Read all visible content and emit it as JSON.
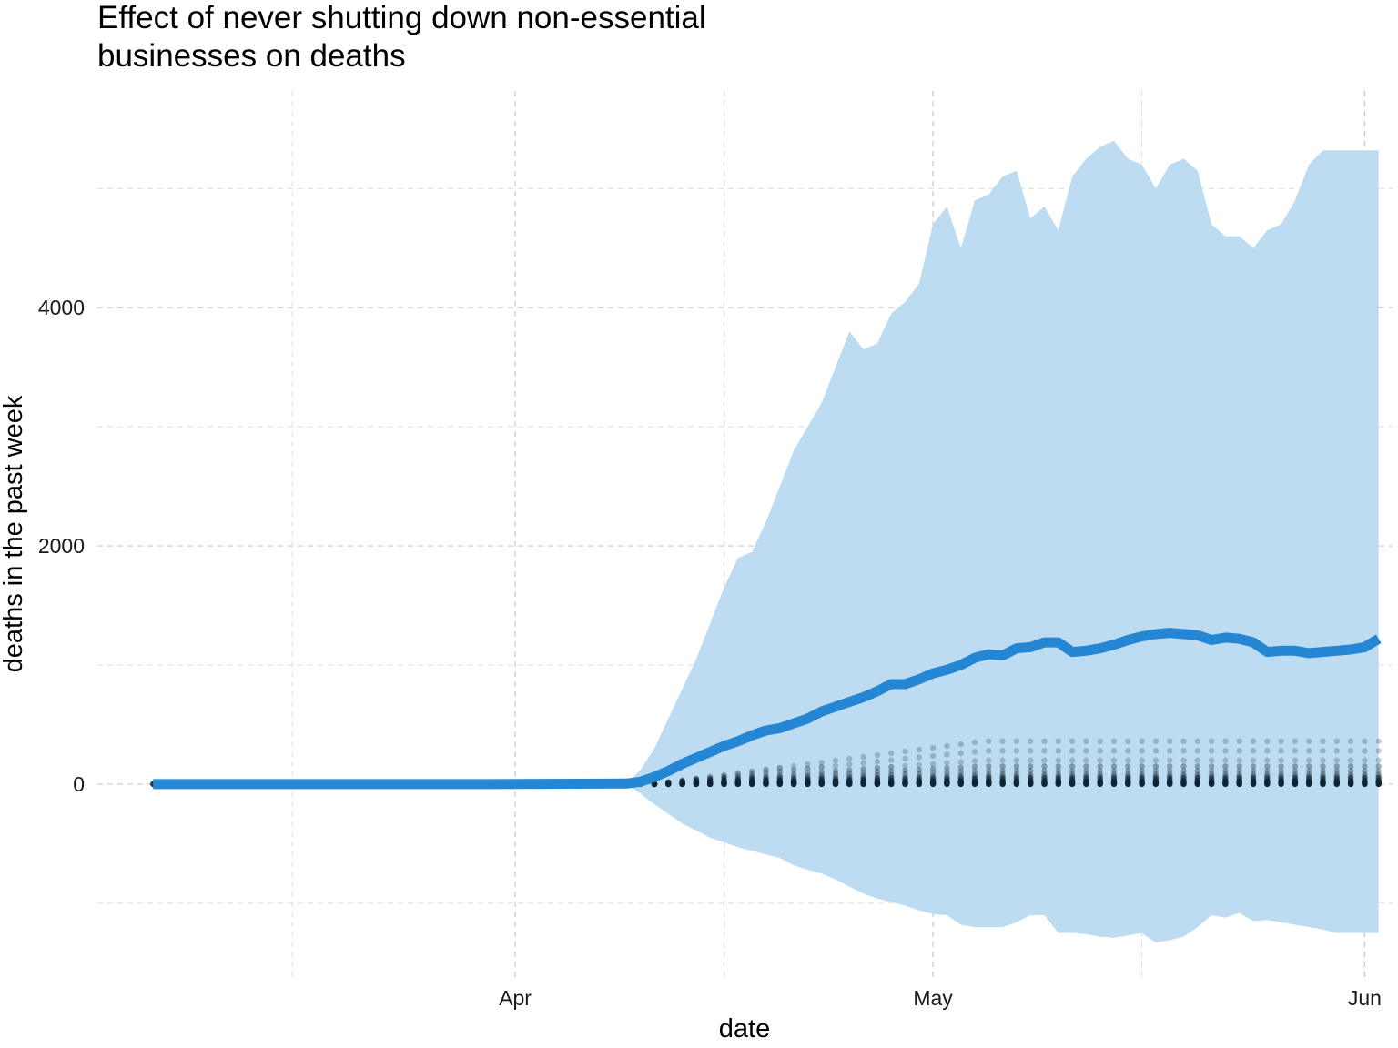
{
  "chart_data": {
    "type": "line",
    "title": "Effect of never shutting down non-essential businesses on deaths",
    "title_lines": [
      "Effect of never shutting down non-essential",
      "businesses on deaths"
    ],
    "xlabel": "date",
    "ylabel": "deaths in the past week",
    "x_ticks": [
      {
        "label": "Apr",
        "date": "2020-04-01"
      },
      {
        "label": "May",
        "date": "2020-05-01"
      },
      {
        "label": "Jun",
        "date": "2020-06-01"
      }
    ],
    "x_minor_ticks": [
      "2020-03-16",
      "2020-04-16",
      "2020-05-16"
    ],
    "y_ticks": [
      0,
      2000,
      4000
    ],
    "y_minor_ticks": [
      -1000,
      1000,
      3000,
      5000
    ],
    "xlim": [
      "2020-03-02",
      "2020-06-03"
    ],
    "ylim": [
      -1650,
      5880
    ],
    "grid": true,
    "legend": "none",
    "colors": {
      "line": "#2586d3",
      "ribbon": "#bddcf1",
      "points": "#0d2233",
      "grid": "#c8c8c8"
    },
    "series": [
      {
        "kind": "mean_line",
        "x": [
          "2020-03-06",
          "2020-03-30",
          "2020-04-09",
          "2020-04-10",
          "2020-04-11",
          "2020-04-12",
          "2020-04-13",
          "2020-04-14",
          "2020-04-15",
          "2020-04-16",
          "2020-04-17",
          "2020-04-18",
          "2020-04-19",
          "2020-04-20",
          "2020-04-21",
          "2020-04-22",
          "2020-04-23",
          "2020-04-24",
          "2020-04-25",
          "2020-04-26",
          "2020-04-27",
          "2020-04-28",
          "2020-04-29",
          "2020-04-30",
          "2020-05-01",
          "2020-05-02",
          "2020-05-03",
          "2020-05-04",
          "2020-05-05",
          "2020-05-06",
          "2020-05-07",
          "2020-05-08",
          "2020-05-09",
          "2020-05-10",
          "2020-05-11",
          "2020-05-12",
          "2020-05-13",
          "2020-05-14",
          "2020-05-15",
          "2020-05-16",
          "2020-05-17",
          "2020-05-18",
          "2020-05-19",
          "2020-05-20",
          "2020-05-21",
          "2020-05-22",
          "2020-05-23",
          "2020-05-24",
          "2020-05-25",
          "2020-05-26",
          "2020-05-27",
          "2020-05-28",
          "2020-05-29",
          "2020-05-30",
          "2020-05-31",
          "2020-06-01",
          "2020-06-02"
        ],
        "y": [
          0,
          0,
          5,
          20,
          60,
          110,
          170,
          220,
          270,
          320,
          360,
          410,
          450,
          470,
          510,
          550,
          610,
          650,
          690,
          730,
          780,
          840,
          840,
          880,
          930,
          960,
          1000,
          1060,
          1090,
          1080,
          1140,
          1150,
          1190,
          1190,
          1110,
          1120,
          1140,
          1170,
          1210,
          1240,
          1260,
          1270,
          1260,
          1250,
          1210,
          1230,
          1220,
          1190,
          1110,
          1120,
          1120,
          1100,
          1110,
          1120,
          1130,
          1150,
          1220
        ]
      },
      {
        "kind": "interval_upper",
        "x": [
          "2020-04-09",
          "2020-04-10",
          "2020-04-11",
          "2020-04-12",
          "2020-04-13",
          "2020-04-14",
          "2020-04-15",
          "2020-04-16",
          "2020-04-17",
          "2020-04-18",
          "2020-04-19",
          "2020-04-20",
          "2020-04-21",
          "2020-04-22",
          "2020-04-23",
          "2020-04-24",
          "2020-04-25",
          "2020-04-26",
          "2020-04-27",
          "2020-04-28",
          "2020-04-29",
          "2020-04-30",
          "2020-05-01",
          "2020-05-02",
          "2020-05-03",
          "2020-05-04",
          "2020-05-05",
          "2020-05-06",
          "2020-05-07",
          "2020-05-08",
          "2020-05-09",
          "2020-05-10",
          "2020-05-11",
          "2020-05-12",
          "2020-05-13",
          "2020-05-14",
          "2020-05-15",
          "2020-05-16",
          "2020-05-17",
          "2020-05-18",
          "2020-05-19",
          "2020-05-20",
          "2020-05-21",
          "2020-05-22",
          "2020-05-23",
          "2020-05-24",
          "2020-05-25",
          "2020-05-26",
          "2020-05-27",
          "2020-05-28",
          "2020-05-29",
          "2020-05-30",
          "2020-05-31",
          "2020-06-01",
          "2020-06-02"
        ],
        "y": [
          0,
          120,
          300,
          550,
          800,
          1050,
          1350,
          1650,
          1900,
          1950,
          2200,
          2500,
          2800,
          3000,
          3200,
          3500,
          3800,
          3650,
          3700,
          3950,
          4050,
          4200,
          4700,
          4850,
          4500,
          4900,
          4950,
          5100,
          5150,
          4750,
          4850,
          4650,
          5100,
          5250,
          5350,
          5400,
          5250,
          5200,
          5000,
          5200,
          5250,
          5150,
          4700,
          4600,
          4600,
          4500,
          4650,
          4700,
          4900,
          5200,
          5320,
          5320,
          5320,
          5320,
          5320
        ]
      },
      {
        "kind": "interval_lower",
        "x": [
          "2020-04-09",
          "2020-04-10",
          "2020-04-11",
          "2020-04-12",
          "2020-04-13",
          "2020-04-14",
          "2020-04-15",
          "2020-04-16",
          "2020-04-17",
          "2020-04-18",
          "2020-04-19",
          "2020-04-20",
          "2020-04-21",
          "2020-04-22",
          "2020-04-23",
          "2020-04-24",
          "2020-04-25",
          "2020-04-26",
          "2020-04-27",
          "2020-04-28",
          "2020-04-29",
          "2020-04-30",
          "2020-05-01",
          "2020-05-02",
          "2020-05-03",
          "2020-05-04",
          "2020-05-05",
          "2020-05-06",
          "2020-05-07",
          "2020-05-08",
          "2020-05-09",
          "2020-05-10",
          "2020-05-11",
          "2020-05-12",
          "2020-05-13",
          "2020-05-14",
          "2020-05-15",
          "2020-05-16",
          "2020-05-17",
          "2020-05-18",
          "2020-05-19",
          "2020-05-20",
          "2020-05-21",
          "2020-05-22",
          "2020-05-23",
          "2020-05-24",
          "2020-05-25",
          "2020-05-26",
          "2020-05-27",
          "2020-05-28",
          "2020-05-29",
          "2020-05-30",
          "2020-05-31",
          "2020-06-01",
          "2020-06-02"
        ],
        "y": [
          0,
          -80,
          -170,
          -250,
          -330,
          -390,
          -450,
          -490,
          -530,
          -560,
          -590,
          -620,
          -680,
          -720,
          -750,
          -800,
          -860,
          -920,
          -960,
          -990,
          -1020,
          -1060,
          -1090,
          -1100,
          -1180,
          -1200,
          -1200,
          -1200,
          -1160,
          -1100,
          -1100,
          -1250,
          -1250,
          -1260,
          -1280,
          -1290,
          -1270,
          -1250,
          -1330,
          -1310,
          -1280,
          -1200,
          -1100,
          -1120,
          -1080,
          -1150,
          -1140,
          -1160,
          -1180,
          -1200,
          -1220,
          -1250,
          -1250,
          -1250,
          -1250
        ]
      },
      {
        "kind": "simulation_draws",
        "x_start": "2020-04-11",
        "x_end": "2020-06-02",
        "lines_peak": [
          360,
          280,
          200,
          150,
          110,
          80,
          60,
          45,
          30,
          20,
          12,
          6,
          3,
          0
        ]
      }
    ]
  }
}
